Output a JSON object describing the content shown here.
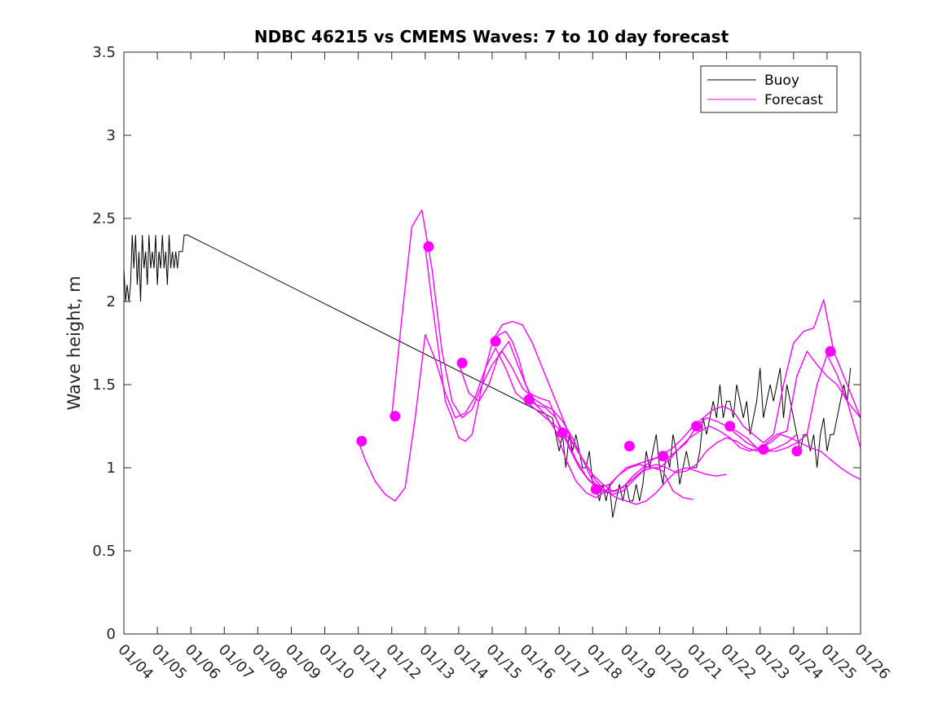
{
  "chart_data": {
    "type": "line",
    "title": "NDBC 46215 vs CMEMS Waves: 7 to 10 day forecast",
    "xlabel": "",
    "ylabel": "Wave height, m",
    "xlim": [
      0,
      22
    ],
    "ylim": [
      0,
      3.5
    ],
    "yticks": [
      0,
      0.5,
      1,
      1.5,
      2,
      2.5,
      3,
      3.5
    ],
    "y_tick_labels": [
      "0",
      "0.5",
      "1",
      "1.5",
      "2",
      "2.5",
      "3",
      "3.5"
    ],
    "x_tick_labels": [
      "01/04",
      "01/05",
      "01/06",
      "01/07",
      "01/08",
      "01/09",
      "01/10",
      "01/11",
      "01/12",
      "01/13",
      "01/14",
      "01/15",
      "01/16",
      "01/17",
      "01/18",
      "01/19",
      "01/20",
      "01/21",
      "01/22",
      "01/23",
      "01/24",
      "01/25",
      "01/26"
    ],
    "legend": {
      "position": "top-right",
      "entries": [
        "Buoy",
        "Forecast"
      ]
    },
    "colors": {
      "buoy": "#000000",
      "forecast": "#ff00ff",
      "axes": "#262626"
    },
    "buoy": {
      "name": "Buoy",
      "x": [
        0.0,
        0.05,
        0.1,
        0.15,
        0.2,
        0.25,
        0.3,
        0.35,
        0.4,
        0.45,
        0.5,
        0.55,
        0.6,
        0.65,
        0.7,
        0.75,
        0.8,
        0.85,
        0.9,
        0.95,
        1.0,
        1.05,
        1.1,
        1.15,
        1.2,
        1.25,
        1.3,
        1.35,
        1.4,
        1.45,
        1.5,
        1.55,
        1.6,
        1.65,
        1.7,
        1.75,
        1.8,
        1.85,
        1.9,
        12.8,
        12.9,
        13.0,
        13.1,
        13.2,
        13.3,
        13.4,
        13.5,
        13.6,
        13.7,
        13.8,
        13.9,
        14.0,
        14.1,
        14.2,
        14.3,
        14.4,
        14.5,
        14.6,
        14.7,
        14.8,
        14.9,
        15.0,
        15.1,
        15.2,
        15.3,
        15.4,
        15.5,
        15.6,
        15.7,
        15.8,
        15.9,
        16.0,
        16.1,
        16.2,
        16.3,
        16.4,
        16.5,
        16.6,
        16.7,
        16.8,
        16.9,
        17.0,
        17.1,
        17.2,
        17.3,
        17.4,
        17.5,
        17.6,
        17.7,
        17.8,
        17.9,
        18.0,
        18.1,
        18.2,
        18.3,
        18.4,
        18.5,
        18.6,
        18.7,
        18.8,
        18.9,
        19.0,
        19.1,
        19.2,
        19.3,
        19.4,
        19.5,
        19.6,
        19.7,
        19.8,
        19.9,
        20.0,
        20.1,
        20.2,
        20.3,
        20.4,
        20.5,
        20.6,
        20.7,
        20.8,
        20.9,
        21.0,
        21.1,
        21.2,
        21.3,
        21.4,
        21.5,
        21.6,
        21.7
      ],
      "values": [
        2.2,
        2.0,
        2.1,
        2.0,
        2.1,
        2.4,
        2.2,
        2.4,
        2.1,
        2.3,
        2.0,
        2.4,
        2.2,
        2.3,
        2.1,
        2.4,
        2.2,
        2.3,
        2.2,
        2.4,
        2.1,
        2.3,
        2.2,
        2.4,
        2.2,
        2.3,
        2.1,
        2.4,
        2.2,
        2.3,
        2.2,
        2.3,
        2.2,
        2.3,
        2.3,
        2.3,
        2.4,
        2.4,
        2.4,
        1.3,
        1.2,
        1.1,
        1.2,
        1.0,
        1.2,
        1.1,
        1.2,
        1.1,
        1.0,
        1.0,
        1.1,
        0.9,
        0.9,
        0.8,
        0.9,
        0.8,
        0.9,
        0.7,
        0.8,
        0.9,
        0.8,
        0.9,
        0.8,
        0.8,
        0.9,
        0.8,
        0.9,
        1.1,
        1.0,
        1.1,
        1.2,
        1.0,
        0.9,
        1.1,
        1.0,
        1.2,
        1.1,
        0.9,
        1.0,
        1.1,
        1.0,
        1.0,
        1.0,
        1.1,
        1.3,
        1.2,
        1.3,
        1.4,
        1.3,
        1.5,
        1.3,
        1.4,
        1.4,
        1.3,
        1.5,
        1.4,
        1.3,
        1.4,
        1.2,
        1.3,
        1.4,
        1.6,
        1.3,
        1.4,
        1.5,
        1.4,
        1.5,
        1.6,
        1.3,
        1.5,
        1.4,
        1.3,
        1.2,
        1.1,
        1.2,
        1.2,
        1.1,
        1.2,
        1.0,
        1.2,
        1.3,
        1.1,
        1.2,
        1.2,
        1.3,
        1.4,
        1.5,
        1.4,
        1.6
      ]
    },
    "forecast_series": [
      {
        "name": "Forecast",
        "x": [
          7.0,
          7.2,
          7.5,
          7.8,
          8.1,
          8.4,
          8.7,
          9.0,
          9.3,
          9.6,
          9.9,
          10.2,
          10.5,
          10.8,
          11.1,
          11.4,
          11.7,
          12.0,
          12.3,
          12.6,
          12.9,
          13.2,
          13.5,
          13.8,
          14.1,
          14.4,
          14.7,
          15.0,
          15.3,
          15.6,
          15.9,
          16.2,
          16.5,
          16.8,
          17.1,
          17.4,
          17.7,
          18.0
        ],
        "values": [
          1.16,
          1.05,
          0.92,
          0.84,
          0.8,
          0.88,
          1.3,
          1.8,
          1.65,
          1.45,
          1.3,
          1.33,
          1.43,
          1.6,
          1.72,
          1.6,
          1.45,
          1.4,
          1.35,
          1.3,
          1.25,
          1.2,
          1.12,
          1.02,
          0.92,
          0.86,
          0.82,
          0.8,
          0.78,
          0.8,
          0.85,
          0.92,
          0.98,
          1.0,
          0.98,
          0.96,
          0.95,
          0.96
        ]
      },
      {
        "name": "Forecast",
        "x": [
          8.0,
          8.3,
          8.6,
          8.9,
          9.2,
          9.5,
          9.8,
          10.1,
          10.4,
          10.7,
          11.0,
          11.3,
          11.6,
          11.9,
          12.2,
          12.5,
          12.8,
          13.1,
          13.4,
          13.7,
          14.0,
          14.3,
          14.6,
          14.9,
          15.2,
          15.5,
          15.8,
          16.1,
          16.4,
          16.7,
          17.0
        ],
        "values": [
          1.31,
          1.9,
          2.45,
          2.55,
          2.2,
          1.7,
          1.4,
          1.3,
          1.35,
          1.5,
          1.62,
          1.7,
          1.6,
          1.48,
          1.42,
          1.38,
          1.35,
          1.28,
          1.18,
          1.05,
          0.92,
          0.86,
          0.84,
          0.86,
          0.92,
          0.98,
          1.0,
          0.98,
          0.86,
          0.82,
          0.81
        ]
      },
      {
        "name": "Forecast",
        "x": [
          9.0,
          9.2,
          9.4,
          9.6,
          9.8,
          10.0,
          10.2,
          10.4,
          10.6,
          10.8,
          11.0,
          11.2,
          11.4,
          11.6,
          11.8,
          12.0,
          12.3,
          12.6,
          12.9,
          13.2,
          13.5,
          13.8,
          14.1,
          14.4,
          14.7,
          15.0,
          15.3,
          15.6,
          15.9,
          16.2,
          16.5,
          16.8,
          17.1,
          17.4,
          17.7,
          18.0,
          18.3,
          18.6,
          18.9,
          19.2,
          19.5,
          19.8,
          20.1
        ],
        "values": [
          2.33,
          2.0,
          1.7,
          1.4,
          1.3,
          1.18,
          1.16,
          1.2,
          1.4,
          1.6,
          1.75,
          1.8,
          1.82,
          1.76,
          1.65,
          1.5,
          1.38,
          1.32,
          1.22,
          1.05,
          0.92,
          0.85,
          0.82,
          0.86,
          0.94,
          1.0,
          1.02,
          1.04,
          1.06,
          1.05,
          1.1,
          1.15,
          1.25,
          1.3,
          1.28,
          1.25,
          1.2,
          1.15,
          1.12,
          1.1,
          1.12,
          1.15,
          1.2
        ]
      },
      {
        "name": "Forecast",
        "x": [
          10.0,
          10.3,
          10.6,
          10.9,
          11.2,
          11.5,
          11.8,
          12.1,
          12.4,
          12.7,
          13.0,
          13.3,
          13.6,
          13.9,
          14.2,
          14.5,
          14.8,
          15.1,
          15.4,
          15.7,
          16.0,
          16.3,
          16.6,
          16.9,
          17.2,
          17.5,
          17.8,
          18.1,
          18.4,
          18.7,
          19.0,
          19.3,
          19.6,
          19.9,
          20.2,
          20.5,
          20.8,
          21.1,
          21.4,
          21.7,
          22.0
        ],
        "values": [
          1.63,
          1.45,
          1.4,
          1.5,
          1.68,
          1.76,
          1.6,
          1.45,
          1.42,
          1.4,
          1.25,
          1.12,
          1.0,
          0.92,
          0.88,
          0.9,
          0.96,
          1.0,
          1.02,
          1.0,
          1.0,
          1.05,
          1.12,
          1.18,
          1.22,
          1.25,
          1.22,
          1.18,
          1.12,
          1.1,
          1.12,
          1.15,
          1.2,
          1.18,
          1.15,
          1.12,
          1.1,
          1.05,
          1.0,
          0.96,
          0.93
        ]
      },
      {
        "name": "Forecast",
        "x": [
          11.0,
          11.3,
          11.6,
          11.9,
          12.2,
          12.5,
          12.8,
          13.1,
          13.4,
          13.7,
          14.0,
          14.3,
          14.6,
          14.9,
          15.2,
          15.5,
          15.8,
          16.1,
          16.4,
          16.7,
          17.0,
          17.3,
          17.6,
          17.9,
          18.2,
          18.5,
          18.8,
          19.1,
          19.4,
          19.7,
          20.0,
          20.3,
          20.6,
          20.9,
          21.2,
          21.5,
          21.8,
          22.0
        ],
        "values": [
          1.76,
          1.86,
          1.88,
          1.86,
          1.75,
          1.6,
          1.45,
          1.3,
          1.15,
          1.05,
          0.96,
          0.9,
          0.86,
          0.88,
          0.95,
          1.0,
          1.05,
          1.08,
          1.12,
          1.18,
          1.25,
          1.3,
          1.35,
          1.37,
          1.34,
          1.25,
          1.2,
          1.15,
          1.2,
          1.5,
          1.75,
          1.82,
          1.84,
          2.01,
          1.7,
          1.55,
          1.4,
          1.3
        ]
      },
      {
        "name": "Forecast",
        "x": [
          12.0,
          12.3,
          12.6,
          12.9,
          13.2,
          13.5,
          13.8,
          14.1,
          14.4,
          14.7,
          15.0,
          15.3,
          15.6,
          15.9,
          16.2,
          16.5,
          16.8,
          17.1,
          17.4,
          17.7,
          18.0,
          18.3,
          18.6,
          18.9,
          19.2,
          19.5,
          19.8,
          20.1,
          20.4,
          20.7,
          21.0,
          21.3,
          21.6,
          22.0
        ],
        "values": [
          1.41,
          1.38,
          1.36,
          1.3,
          1.18,
          1.05,
          0.95,
          0.88,
          0.85,
          0.86,
          0.9,
          0.95,
          1.0,
          1.02,
          1.0,
          0.97,
          0.98,
          1.02,
          1.1,
          1.15,
          1.18,
          1.16,
          1.12,
          1.1,
          1.15,
          1.2,
          1.22,
          1.55,
          1.7,
          1.62,
          1.55,
          1.5,
          1.4,
          1.3
        ]
      },
      {
        "name": "Forecast",
        "x": [
          18.0,
          18.3,
          18.6,
          18.9,
          19.2,
          19.5,
          19.8,
          20.1,
          20.4,
          20.7,
          21.0,
          21.3,
          21.6,
          22.0
        ],
        "values": [
          1.25,
          1.22,
          1.18,
          1.12,
          1.1,
          1.1,
          1.12,
          1.15,
          1.2,
          1.5,
          1.68,
          1.56,
          1.4,
          1.12
        ]
      }
    ],
    "forecast_markers": {
      "x": [
        7.1,
        8.1,
        9.1,
        10.1,
        11.1,
        12.1,
        13.1,
        14.1,
        15.1,
        16.1,
        17.1,
        18.1,
        19.1,
        20.1,
        21.1
      ],
      "values": [
        1.16,
        1.31,
        2.33,
        1.63,
        1.76,
        1.41,
        1.21,
        0.87,
        1.13,
        1.07,
        1.25,
        1.25,
        1.11,
        1.1,
        1.7
      ]
    }
  }
}
